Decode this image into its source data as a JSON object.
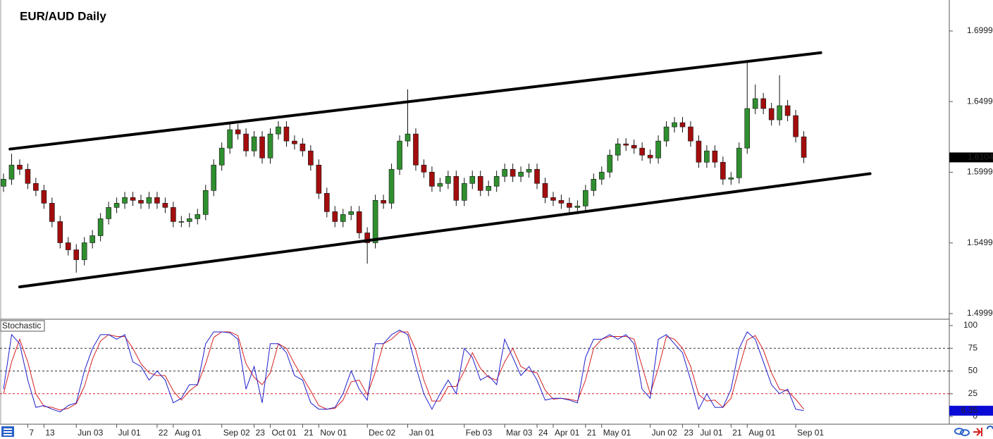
{
  "chart_data": [
    {
      "type": "candlestick",
      "title": "EUR/AUD Daily",
      "categories": [
        null,
        null,
        null,
        "7",
        null,
        "13",
        null,
        null,
        null,
        "Jun 03",
        null,
        null,
        null,
        null,
        "Jul 01",
        null,
        null,
        null,
        null,
        "22",
        null,
        "Aug 01",
        null,
        null,
        null,
        null,
        null,
        "Sep 02",
        null,
        null,
        null,
        "23",
        null,
        "Oct 01",
        null,
        null,
        null,
        "21",
        null,
        "Nov 01",
        null,
        null,
        null,
        null,
        null,
        "Dec 02",
        null,
        null,
        null,
        null,
        "Jan 01",
        null,
        null,
        null,
        null,
        null,
        null,
        "Feb 03",
        null,
        null,
        null,
        null,
        "Mar 03",
        null,
        null,
        null,
        "24",
        null,
        "Apr 01",
        null,
        null,
        null,
        "21",
        null,
        "May 01",
        null,
        null,
        null,
        null,
        null,
        "Jun 02",
        null,
        null,
        null,
        "23",
        null,
        "Jul 01",
        null,
        null,
        null,
        "21",
        null,
        "Aug 01",
        null,
        null,
        null,
        null,
        null,
        "Sep 01",
        null
      ],
      "open": [
        1.59,
        1.595,
        1.605,
        1.602,
        1.592,
        1.587,
        1.578,
        1.565,
        1.55,
        1.545,
        1.538,
        1.55,
        1.555,
        1.567,
        1.575,
        1.578,
        1.582,
        1.58,
        1.578,
        1.582,
        1.578,
        1.575,
        1.565,
        1.565,
        1.567,
        1.57,
        1.587,
        1.605,
        1.617,
        1.63,
        1.627,
        1.615,
        1.625,
        1.61,
        1.627,
        1.632,
        1.622,
        1.62,
        1.615,
        1.605,
        1.585,
        1.572,
        1.565,
        1.57,
        1.572,
        1.557,
        1.55,
        1.58,
        1.578,
        1.602,
        1.622,
        1.627,
        1.605,
        1.6,
        1.59,
        1.592,
        1.597,
        1.58,
        1.592,
        1.597,
        1.587,
        1.59,
        1.597,
        1.602,
        1.597,
        1.6,
        1.602,
        1.592,
        1.582,
        1.58,
        1.578,
        1.575,
        1.576,
        1.587,
        1.595,
        1.6,
        1.612,
        1.62,
        1.619,
        1.617,
        1.612,
        1.61,
        1.622,
        1.632,
        1.635,
        1.632,
        1.622,
        1.607,
        1.615,
        1.607,
        1.595,
        1.596,
        1.617,
        1.645,
        1.652,
        1.645,
        1.637,
        1.647,
        1.64,
        1.625
      ],
      "high": [
        1.599,
        1.613,
        1.609,
        1.606,
        1.596,
        1.591,
        1.582,
        1.569,
        1.554,
        1.549,
        1.554,
        1.559,
        1.571,
        1.579,
        1.582,
        1.586,
        1.586,
        1.584,
        1.586,
        1.586,
        1.582,
        1.579,
        1.569,
        1.571,
        1.574,
        1.591,
        1.609,
        1.621,
        1.634,
        1.634,
        1.631,
        1.629,
        1.629,
        1.631,
        1.636,
        1.636,
        1.626,
        1.624,
        1.619,
        1.609,
        1.589,
        1.576,
        1.574,
        1.576,
        1.576,
        1.561,
        1.584,
        1.584,
        1.606,
        1.626,
        1.6586,
        1.631,
        1.609,
        1.604,
        1.596,
        1.601,
        1.601,
        1.596,
        1.601,
        1.601,
        1.594,
        1.601,
        1.606,
        1.606,
        1.604,
        1.606,
        1.606,
        1.596,
        1.586,
        1.584,
        1.582,
        1.58,
        1.591,
        1.599,
        1.604,
        1.616,
        1.624,
        1.624,
        1.623,
        1.621,
        1.616,
        1.626,
        1.636,
        1.639,
        1.639,
        1.636,
        1.626,
        1.619,
        1.619,
        1.611,
        1.6,
        1.621,
        1.678,
        1.662,
        1.656,
        1.649,
        1.6686,
        1.651,
        1.644,
        1.629
      ],
      "low": [
        1.586,
        1.591,
        1.598,
        1.588,
        1.583,
        1.574,
        1.561,
        1.546,
        1.541,
        1.5288,
        1.534,
        1.546,
        1.551,
        1.563,
        1.571,
        1.574,
        1.576,
        1.574,
        1.574,
        1.574,
        1.571,
        1.561,
        1.561,
        1.561,
        1.563,
        1.566,
        1.583,
        1.601,
        1.613,
        1.623,
        1.611,
        1.611,
        1.606,
        1.606,
        1.623,
        1.618,
        1.616,
        1.611,
        1.601,
        1.581,
        1.568,
        1.561,
        1.561,
        1.566,
        1.553,
        1.5352,
        1.546,
        1.574,
        1.574,
        1.598,
        1.618,
        1.601,
        1.596,
        1.586,
        1.586,
        1.588,
        1.576,
        1.576,
        1.588,
        1.583,
        1.583,
        1.586,
        1.593,
        1.593,
        1.593,
        1.596,
        1.588,
        1.578,
        1.576,
        1.574,
        1.571,
        1.571,
        1.572,
        1.583,
        1.591,
        1.596,
        1.608,
        1.615,
        1.613,
        1.608,
        1.606,
        1.606,
        1.618,
        1.628,
        1.628,
        1.618,
        1.603,
        1.603,
        1.603,
        1.591,
        1.591,
        1.592,
        1.613,
        1.641,
        1.641,
        1.633,
        1.633,
        1.636,
        1.621,
        1.6064
      ],
      "close": [
        1.595,
        1.605,
        1.602,
        1.592,
        1.587,
        1.578,
        1.565,
        1.55,
        1.545,
        1.538,
        1.55,
        1.555,
        1.567,
        1.575,
        1.578,
        1.582,
        1.58,
        1.578,
        1.582,
        1.578,
        1.575,
        1.565,
        1.565,
        1.567,
        1.57,
        1.587,
        1.605,
        1.617,
        1.63,
        1.627,
        1.615,
        1.625,
        1.61,
        1.627,
        1.632,
        1.622,
        1.62,
        1.615,
        1.605,
        1.585,
        1.572,
        1.565,
        1.57,
        1.572,
        1.557,
        1.55,
        1.58,
        1.578,
        1.602,
        1.622,
        1.627,
        1.605,
        1.6,
        1.59,
        1.592,
        1.597,
        1.58,
        1.592,
        1.597,
        1.587,
        1.59,
        1.597,
        1.602,
        1.597,
        1.6,
        1.602,
        1.592,
        1.582,
        1.58,
        1.578,
        1.575,
        1.576,
        1.587,
        1.595,
        1.6,
        1.612,
        1.62,
        1.619,
        1.617,
        1.612,
        1.61,
        1.622,
        1.632,
        1.635,
        1.632,
        1.622,
        1.607,
        1.615,
        1.607,
        1.595,
        1.596,
        1.617,
        1.645,
        1.652,
        1.645,
        1.637,
        1.647,
        1.64,
        1.625,
        1.6104
      ],
      "up_color": "#2f8f2f",
      "down_color": "#a30d0d",
      "ylim": [
        1.4964,
        1.7218
      ],
      "yticks": [
        1.4999,
        1.5499,
        1.5999,
        1.6499,
        1.6999
      ],
      "trendlines": [
        {
          "x": [
            0.8,
            101.1
          ],
          "y": [
            1.6163,
            1.6845
          ]
        },
        {
          "x": [
            2,
            107.2
          ],
          "y": [
            1.5188,
            1.5989
          ]
        }
      ]
    },
    {
      "type": "line",
      "title": "Stochastic",
      "series": [
        {
          "color": "#1f1fcc",
          "values": [
            30,
            90,
            80,
            40,
            10,
            12,
            8,
            5,
            12,
            15,
            50,
            75,
            90,
            90,
            85,
            90,
            60,
            55,
            40,
            50,
            40,
            15,
            20,
            35,
            35,
            80,
            93,
            93,
            92,
            85,
            30,
            55,
            15,
            80,
            80,
            70,
            45,
            40,
            15,
            8,
            8,
            10,
            25,
            50,
            30,
            18,
            80,
            80,
            90,
            95,
            90,
            55,
            25,
            8,
            25,
            40,
            25,
            75,
            65,
            40,
            45,
            35,
            85,
            65,
            45,
            55,
            40,
            18,
            20,
            20,
            18,
            15,
            65,
            85,
            85,
            90,
            85,
            90,
            80,
            30,
            20,
            85,
            90,
            80,
            70,
            40,
            8,
            25,
            10,
            10,
            30,
            75,
            93,
            85,
            60,
            35,
            25,
            30,
            8,
            6.35
          ]
        },
        {
          "color": "#d62020",
          "values": [
            25,
            60,
            85,
            60,
            25,
            11,
            10,
            7,
            9,
            14,
            33,
            63,
            83,
            90,
            88,
            88,
            75,
            58,
            48,
            45,
            45,
            28,
            18,
            28,
            35,
            58,
            87,
            93,
            93,
            89,
            58,
            43,
            35,
            48,
            80,
            75,
            58,
            43,
            28,
            12,
            8,
            9,
            18,
            38,
            40,
            24,
            49,
            80,
            85,
            93,
            93,
            73,
            40,
            17,
            17,
            33,
            33,
            50,
            70,
            53,
            43,
            40,
            60,
            75,
            55,
            50,
            48,
            29,
            19,
            20,
            19,
            17,
            40,
            75,
            85,
            88,
            88,
            88,
            85,
            55,
            25,
            53,
            88,
            85,
            75,
            55,
            24,
            17,
            18,
            10,
            20,
            53,
            84,
            89,
            73,
            48,
            30,
            28,
            19,
            8
          ]
        }
      ],
      "ylim": [
        -8.5,
        106.2
      ],
      "yticks": [
        0,
        25,
        50,
        75,
        100
      ],
      "levels": [
        25,
        50,
        75
      ],
      "level_colors": [
        "#d62020",
        "#333333",
        "#333333"
      ]
    }
  ]
}
